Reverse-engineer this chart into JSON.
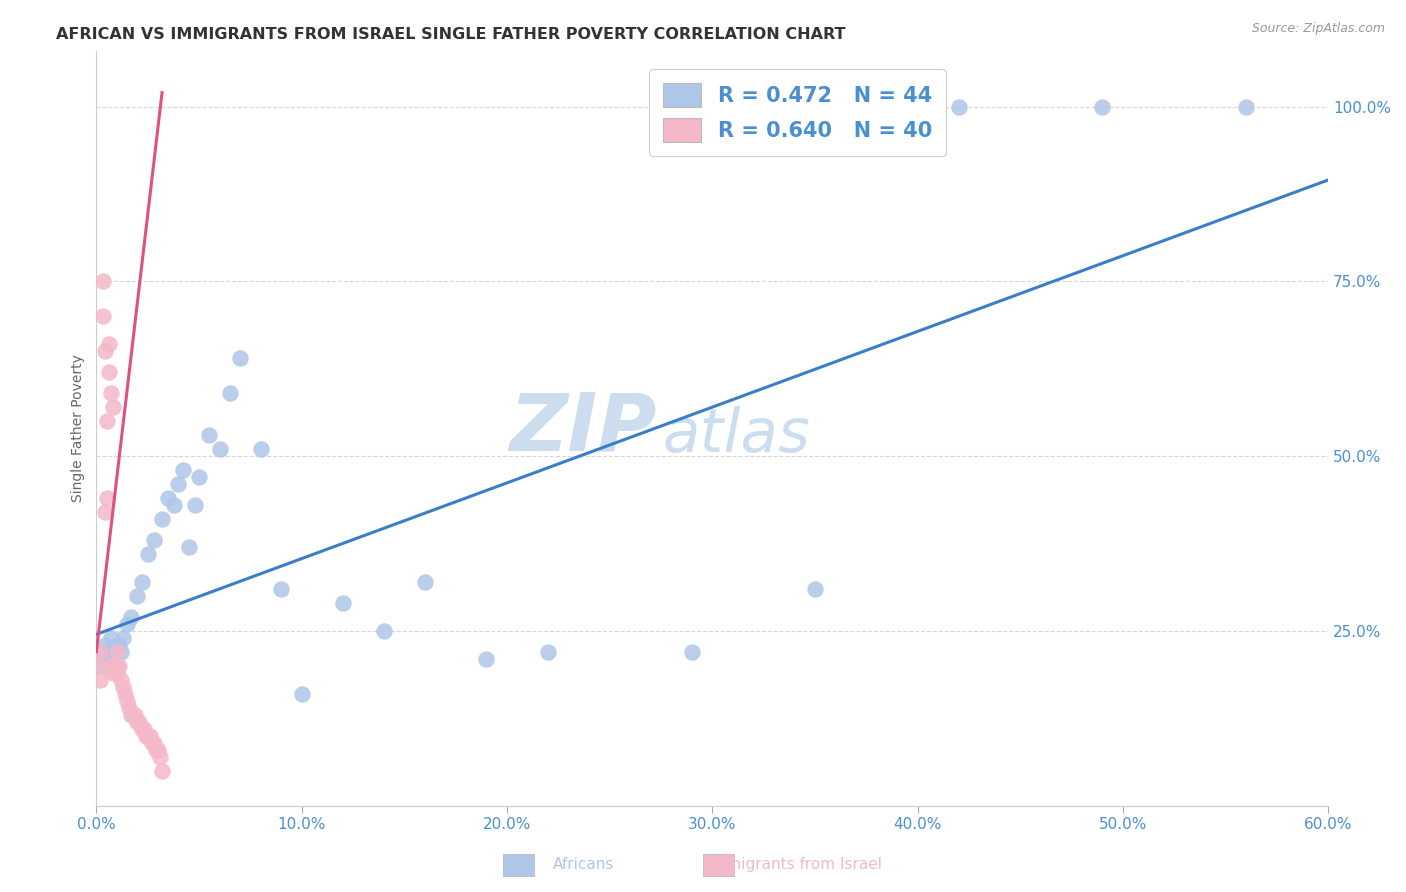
{
  "title": "AFRICAN VS IMMIGRANTS FROM ISRAEL SINGLE FATHER POVERTY CORRELATION CHART",
  "source": "Source: ZipAtlas.com",
  "ylabel": "Single Father Poverty",
  "xlim": [
    0.0,
    0.6
  ],
  "ylim": [
    0.0,
    1.08
  ],
  "xtick_labels": [
    "0.0%",
    "10.0%",
    "20.0%",
    "30.0%",
    "40.0%",
    "50.0%",
    "60.0%"
  ],
  "xtick_vals": [
    0.0,
    0.1,
    0.2,
    0.3,
    0.4,
    0.5,
    0.6
  ],
  "ytick_labels": [
    "25.0%",
    "50.0%",
    "75.0%",
    "100.0%"
  ],
  "ytick_vals": [
    0.25,
    0.5,
    0.75,
    1.0
  ],
  "legend_labels": [
    "Africans",
    "Immigrants from Israel"
  ],
  "legend_r": [
    "R = 0.472",
    "R = 0.640"
  ],
  "legend_n": [
    "N = 44",
    "N = 40"
  ],
  "african_color": "#aec6e8",
  "israel_color": "#f4b8c8",
  "african_line_color": "#3a7ec8",
  "israel_line_color": "#e05080",
  "watermark_zip": "ZIP",
  "watermark_atlas": "atlas",
  "watermark_color": "#ccddf0",
  "background_color": "#ffffff",
  "title_fontsize": 11.5,
  "tick_label_color": "#4a90d0",
  "africans_x": [
    0.001,
    0.002,
    0.003,
    0.004,
    0.005,
    0.006,
    0.007,
    0.008,
    0.009,
    0.01,
    0.011,
    0.012,
    0.013,
    0.015,
    0.017,
    0.02,
    0.022,
    0.025,
    0.028,
    0.032,
    0.035,
    0.038,
    0.04,
    0.042,
    0.045,
    0.048,
    0.05,
    0.055,
    0.06,
    0.065,
    0.07,
    0.08,
    0.09,
    0.1,
    0.12,
    0.14,
    0.16,
    0.19,
    0.22,
    0.29,
    0.35,
    0.42,
    0.49,
    0.56
  ],
  "africans_y": [
    0.21,
    0.22,
    0.2,
    0.23,
    0.22,
    0.21,
    0.24,
    0.22,
    0.21,
    0.2,
    0.23,
    0.22,
    0.24,
    0.26,
    0.27,
    0.3,
    0.32,
    0.36,
    0.38,
    0.41,
    0.44,
    0.43,
    0.46,
    0.48,
    0.37,
    0.43,
    0.47,
    0.53,
    0.51,
    0.59,
    0.64,
    0.51,
    0.31,
    0.16,
    0.29,
    0.25,
    0.32,
    0.21,
    0.22,
    0.22,
    0.31,
    1.0,
    1.0,
    1.0
  ],
  "israel_x": [
    0.001,
    0.002,
    0.002,
    0.003,
    0.003,
    0.004,
    0.004,
    0.005,
    0.005,
    0.006,
    0.006,
    0.007,
    0.007,
    0.008,
    0.008,
    0.009,
    0.01,
    0.01,
    0.011,
    0.012,
    0.013,
    0.014,
    0.015,
    0.016,
    0.017,
    0.018,
    0.019,
    0.02,
    0.021,
    0.022,
    0.023,
    0.024,
    0.025,
    0.026,
    0.027,
    0.028,
    0.029,
    0.03,
    0.031,
    0.032
  ],
  "israel_y": [
    0.2,
    0.22,
    0.18,
    0.75,
    0.7,
    0.42,
    0.65,
    0.55,
    0.44,
    0.66,
    0.62,
    0.2,
    0.59,
    0.19,
    0.57,
    0.2,
    0.22,
    0.19,
    0.2,
    0.18,
    0.17,
    0.16,
    0.15,
    0.14,
    0.13,
    0.13,
    0.13,
    0.12,
    0.12,
    0.11,
    0.11,
    0.1,
    0.1,
    0.1,
    0.09,
    0.09,
    0.08,
    0.08,
    0.07,
    0.05
  ],
  "african_line_x": [
    0.0,
    0.6
  ],
  "african_line_y": [
    0.245,
    0.895
  ],
  "israel_line_x": [
    0.0,
    0.032
  ],
  "israel_line_y": [
    0.22,
    1.02
  ]
}
